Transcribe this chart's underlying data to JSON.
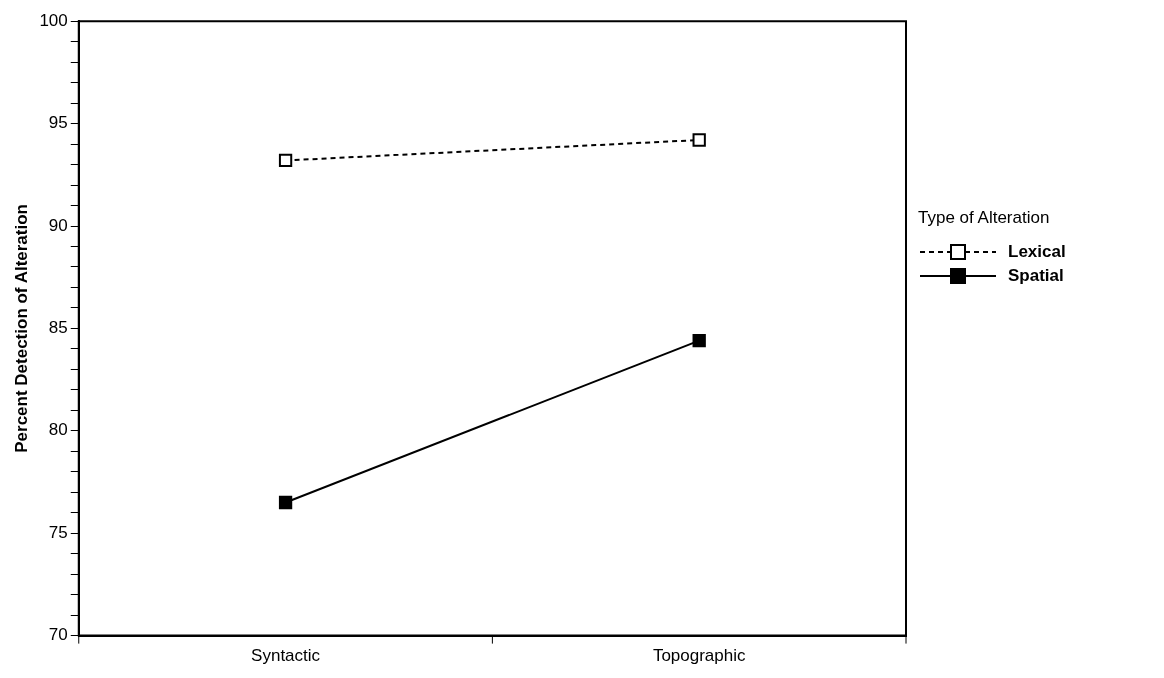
{
  "chart_data": {
    "type": "line",
    "ylabel": "Percent Detection of Alteration",
    "legend_title": "Type of Alteration",
    "categories": [
      "Syntactic",
      "Topographic"
    ],
    "series": [
      {
        "name": "Lexical",
        "color": "#000000",
        "values": [
          93.2,
          94.2
        ],
        "line_style": "dashed"
      },
      {
        "name": "Spatial",
        "color": "#000000",
        "values": [
          76.5,
          84.4
        ],
        "line_style": "solid"
      }
    ],
    "ylim": [
      70,
      100
    ],
    "yticks": [
      70,
      {
        "value": 71,
        "label": null
      },
      {
        "value": 72,
        "label": null
      },
      {
        "value": 73,
        "label": null
      },
      {
        "value": 74,
        "label": null
      },
      75,
      {
        "value": 76,
        "label": null
      },
      {
        "value": 77,
        "label": null
      },
      {
        "value": 78,
        "label": null
      },
      {
        "value": 79,
        "label": null
      },
      80,
      {
        "value": 81,
        "label": null
      },
      {
        "value": 82,
        "label": null
      },
      {
        "value": 83,
        "label": null
      },
      {
        "value": 84,
        "label": null
      },
      85,
      {
        "value": 86,
        "label": null
      },
      {
        "value": 87,
        "label": null
      },
      {
        "value": 88,
        "label": null
      },
      {
        "value": 89,
        "label": null
      },
      90,
      {
        "value": 91,
        "label": null
      },
      {
        "value": 92,
        "label": null
      },
      {
        "value": 93,
        "label": null
      },
      {
        "value": 94,
        "label": null
      },
      95,
      {
        "value": 96,
        "label": null
      },
      {
        "value": 97,
        "label": null
      },
      {
        "value": 98,
        "label": null
      },
      {
        "value": 99,
        "label": null
      },
      100
    ],
    "grid": false,
    "legend": "right",
    "marker": "square"
  }
}
